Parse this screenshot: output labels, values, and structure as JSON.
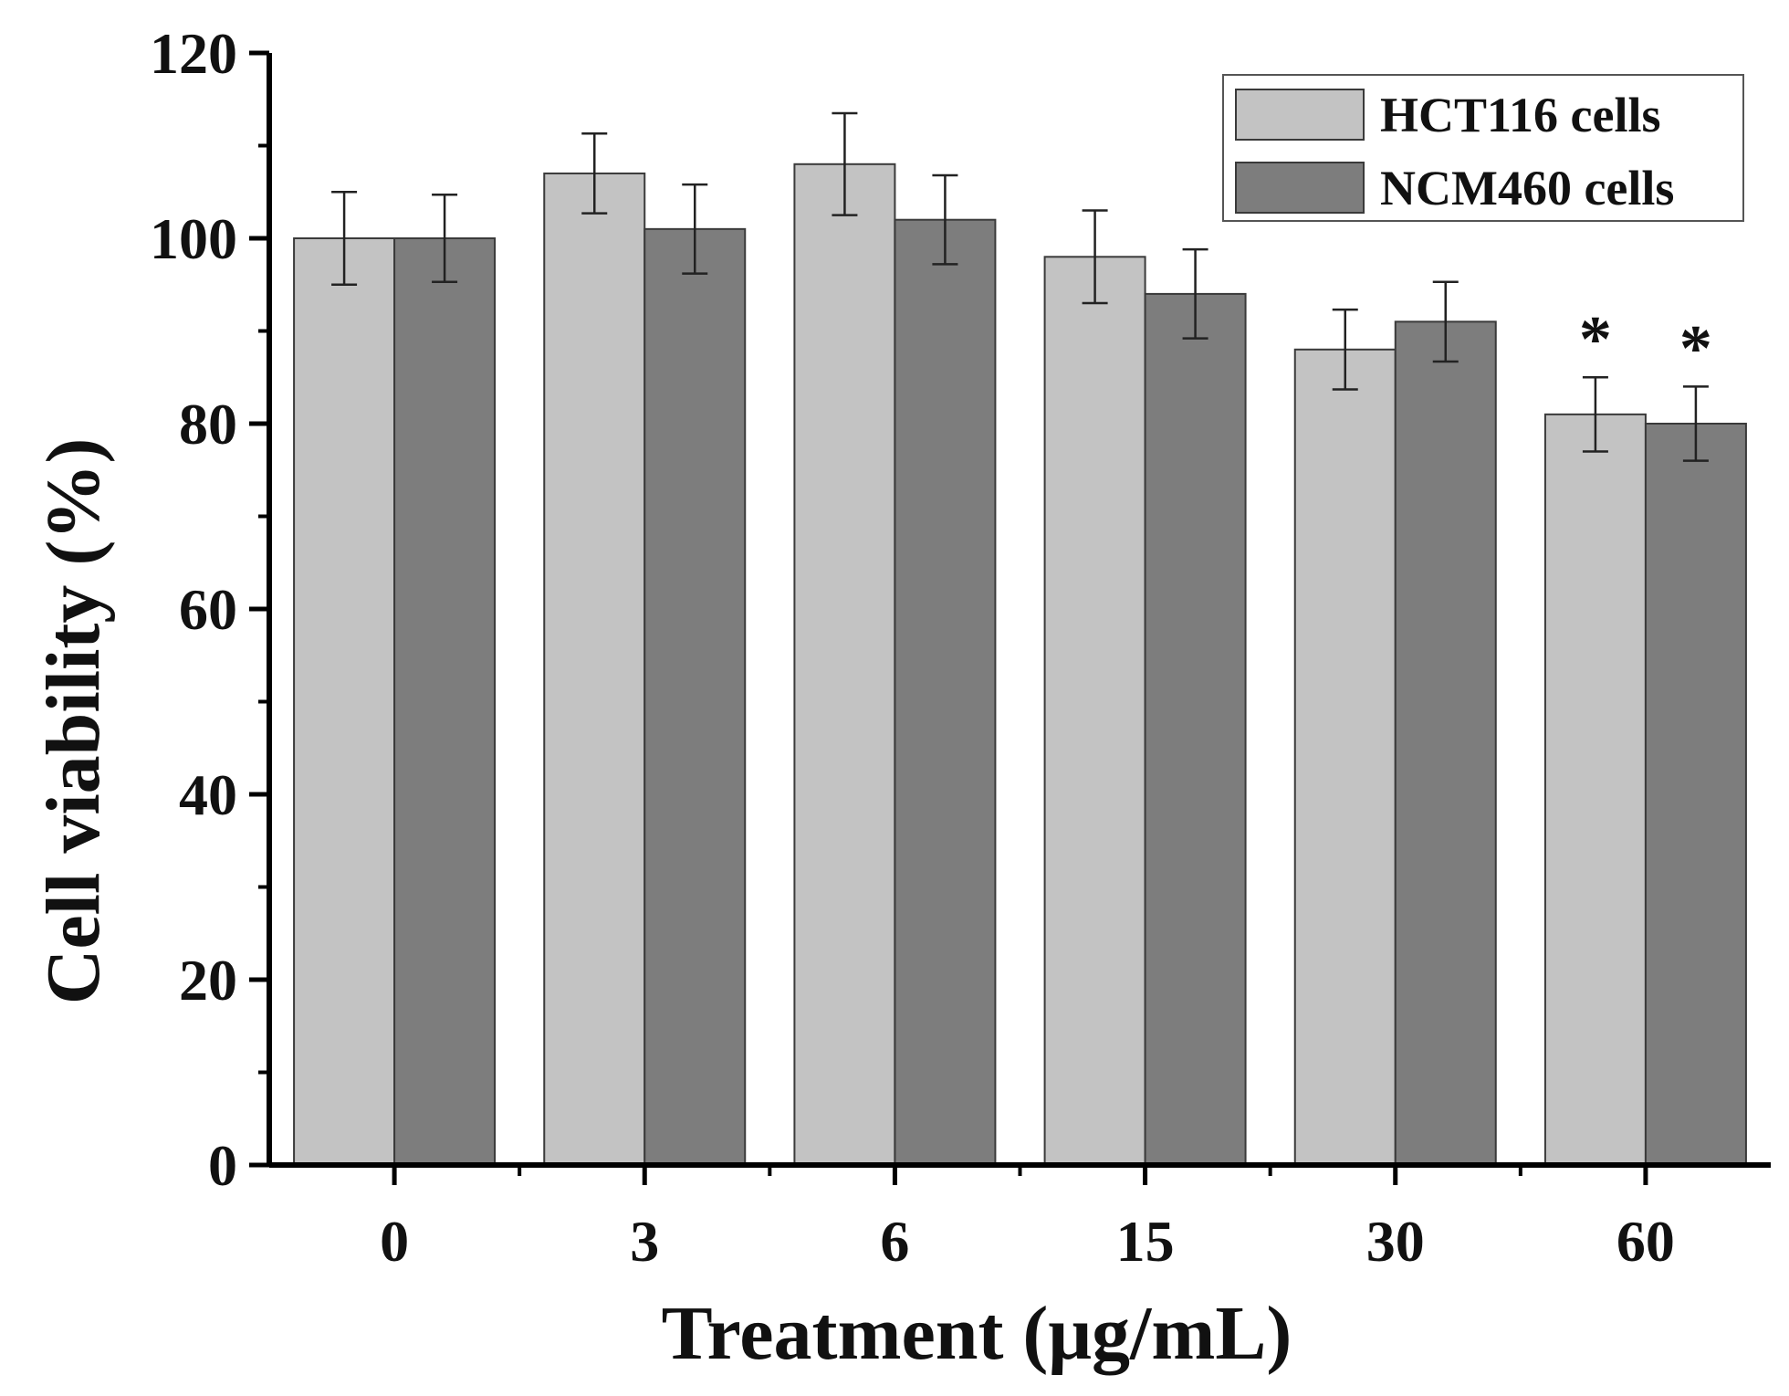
{
  "chart_data": {
    "type": "bar",
    "xlabel": "Treatment (μg/mL)",
    "ylabel": "Cell viability (%)",
    "ylim": [
      0,
      120
    ],
    "yticks": [
      0,
      20,
      40,
      60,
      80,
      100,
      120
    ],
    "categories": [
      "0",
      "3",
      "6",
      "15",
      "30",
      "60"
    ],
    "series": [
      {
        "name": "HCT116 cells",
        "color": "#c3c3c3",
        "values": [
          100,
          107,
          108,
          98,
          88,
          81
        ],
        "errors": [
          5,
          4.3,
          5.5,
          5,
          4.3,
          4
        ],
        "significance": [
          "",
          "",
          "",
          "",
          "",
          "*"
        ]
      },
      {
        "name": "NCM460 cells",
        "color": "#7d7d7d",
        "values": [
          100,
          101,
          102,
          94,
          91,
          80
        ],
        "errors": [
          4.7,
          4.8,
          4.8,
          4.8,
          4.3,
          4
        ],
        "significance": [
          "",
          "",
          "",
          "",
          "",
          "*"
        ]
      }
    ],
    "legend": {
      "position": "top-right"
    }
  }
}
